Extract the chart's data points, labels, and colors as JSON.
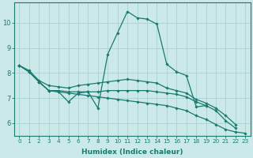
{
  "xlabel": "Humidex (Indice chaleur)",
  "xlim": [
    -0.5,
    23.5
  ],
  "ylim": [
    5.5,
    10.8
  ],
  "xticks": [
    0,
    1,
    2,
    3,
    4,
    5,
    6,
    7,
    8,
    9,
    10,
    11,
    12,
    13,
    14,
    15,
    16,
    17,
    18,
    19,
    20,
    21,
    22,
    23
  ],
  "yticks": [
    6,
    7,
    8,
    9,
    10
  ],
  "bg_color": "#cce9e9",
  "line_color": "#1a7a6e",
  "grid_color": "#b0d4d4",
  "lines": [
    {
      "x": [
        0,
        1,
        2,
        3,
        4,
        5,
        6,
        7,
        8,
        9,
        10,
        11,
        12,
        13,
        14,
        15,
        16,
        17,
        18,
        19
      ],
      "y": [
        8.3,
        8.05,
        7.65,
        7.3,
        7.25,
        6.85,
        7.2,
        7.25,
        6.6,
        8.75,
        9.6,
        10.45,
        10.2,
        10.15,
        9.95,
        8.35,
        8.05,
        7.9,
        6.65,
        6.7
      ]
    },
    {
      "x": [
        0,
        1,
        2,
        3,
        4,
        5,
        6,
        7,
        8,
        9,
        10,
        11,
        12,
        13,
        14,
        15,
        16,
        17,
        18,
        19,
        20,
        21,
        22
      ],
      "y": [
        8.3,
        8.1,
        7.7,
        7.5,
        7.45,
        7.4,
        7.5,
        7.55,
        7.6,
        7.65,
        7.7,
        7.75,
        7.7,
        7.65,
        7.6,
        7.4,
        7.3,
        7.2,
        6.95,
        6.8,
        6.6,
        6.3,
        5.95
      ]
    },
    {
      "x": [
        0,
        1,
        2,
        3,
        4,
        5,
        6,
        7,
        8,
        9,
        10,
        11,
        12,
        13,
        14,
        15,
        16,
        17,
        18,
        19,
        20,
        21,
        22
      ],
      "y": [
        8.3,
        8.05,
        7.65,
        7.3,
        7.3,
        7.25,
        7.25,
        7.25,
        7.25,
        7.3,
        7.3,
        7.3,
        7.3,
        7.3,
        7.25,
        7.2,
        7.15,
        7.05,
        6.85,
        6.7,
        6.5,
        6.1,
        5.8
      ]
    },
    {
      "x": [
        0,
        1,
        2,
        3,
        4,
        5,
        6,
        7,
        8,
        9,
        10,
        11,
        12,
        13,
        14,
        15,
        16,
        17,
        18,
        19,
        20,
        21,
        22,
        23
      ],
      "y": [
        8.3,
        8.05,
        7.65,
        7.3,
        7.25,
        7.2,
        7.15,
        7.1,
        7.05,
        7.0,
        6.95,
        6.9,
        6.85,
        6.8,
        6.75,
        6.7,
        6.6,
        6.5,
        6.3,
        6.15,
        5.95,
        5.75,
        5.65,
        5.6
      ]
    }
  ]
}
